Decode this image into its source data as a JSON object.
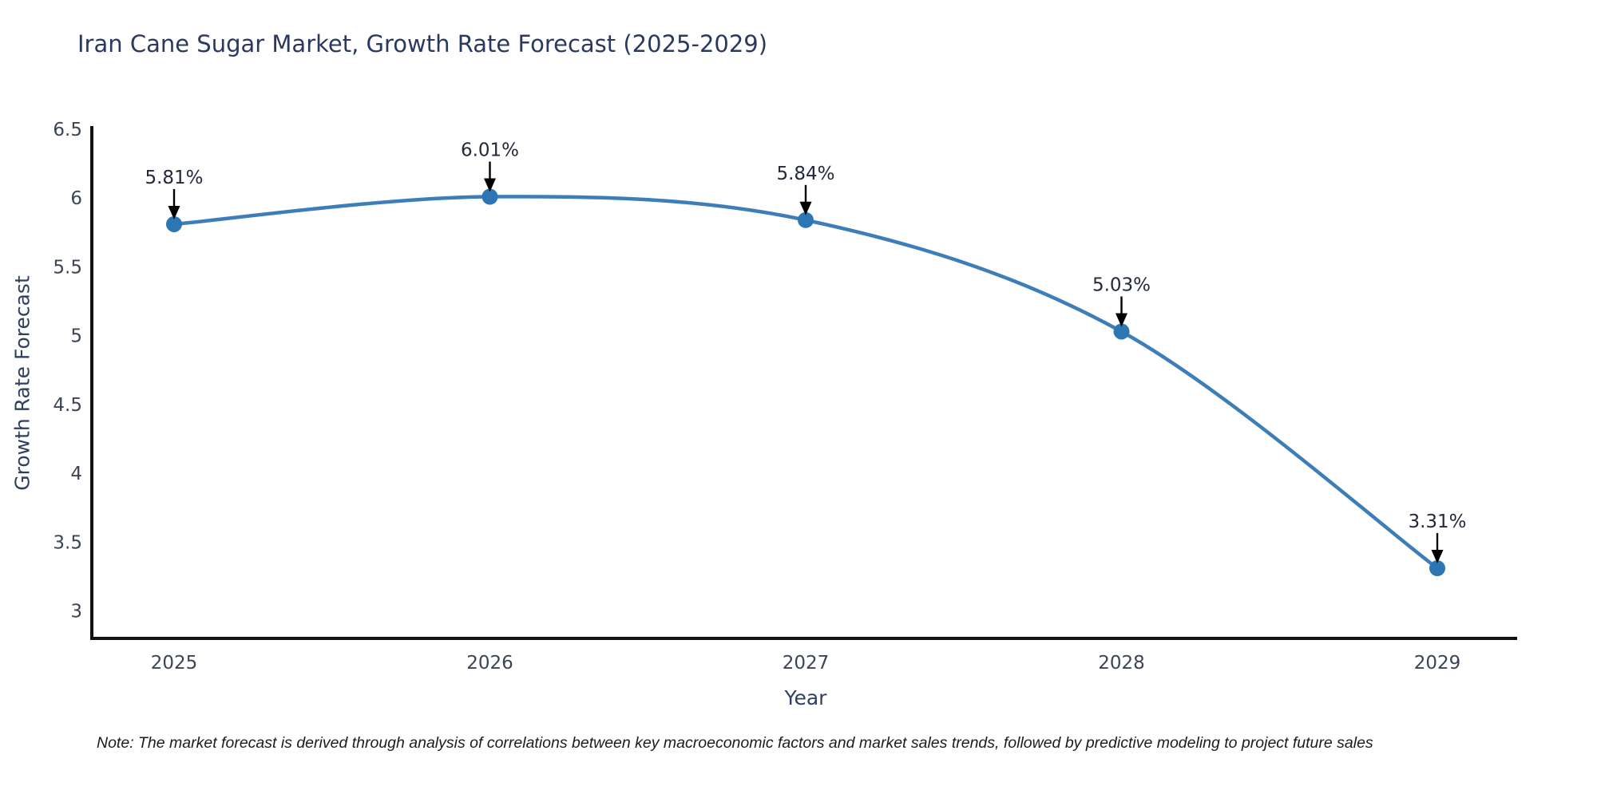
{
  "title": "Iran Cane Sugar Market, Growth Rate Forecast (2025-2029)",
  "note": "Note: The market forecast is derived through analysis of correlations between key macroeconomic factors and market sales trends, followed by predictive modeling to project future sales",
  "chart_data": {
    "type": "line",
    "title": "Iran Cane Sugar Market, Growth Rate Forecast (2025-2029)",
    "xlabel": "Year",
    "ylabel": "Growth Rate Forecast",
    "categories": [
      "2025",
      "2026",
      "2027",
      "2028",
      "2029"
    ],
    "series": [
      {
        "name": "Growth Rate Forecast",
        "values": [
          5.81,
          6.01,
          5.84,
          5.03,
          3.31
        ],
        "point_labels": [
          "5.81%",
          "6.01%",
          "5.84%",
          "5.03%",
          "3.31%"
        ]
      }
    ],
    "ylim": [
      2.8,
      6.5
    ],
    "yticks": [
      3,
      3.5,
      4,
      4.5,
      5,
      5.5,
      6,
      6.5
    ],
    "ytick_labels": [
      "3",
      "3.5",
      "4",
      "4.5",
      "5",
      "5.5",
      "6",
      "6.5"
    ],
    "grid": false,
    "legend": "none",
    "annotation_style": "black-down-arrows",
    "colors": {
      "line": "#3d7eb8",
      "marker": "#2d76b4",
      "arrow": "#000000",
      "axis_line": "#111111"
    }
  },
  "style": {
    "background": "#ffffff",
    "title_color": "#2a3a5e",
    "axis_label_color": "#2e3f60",
    "tick_label_color": "#3b4556",
    "note_color": "#1c1c1c"
  }
}
